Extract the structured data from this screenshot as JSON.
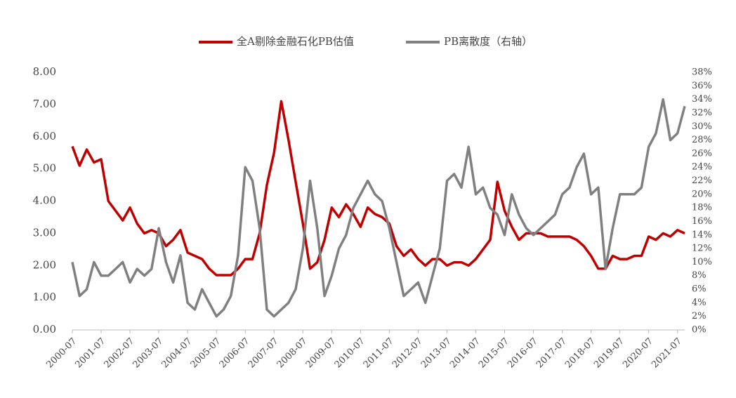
{
  "chart_data": {
    "type": "line",
    "x": [
      "2000-07",
      "2000-10",
      "2001-01",
      "2001-04",
      "2001-07",
      "2001-10",
      "2002-01",
      "2002-04",
      "2002-07",
      "2002-10",
      "2003-01",
      "2003-04",
      "2003-07",
      "2003-10",
      "2004-01",
      "2004-04",
      "2004-07",
      "2004-10",
      "2005-01",
      "2005-04",
      "2005-07",
      "2005-10",
      "2006-01",
      "2006-04",
      "2006-07",
      "2006-10",
      "2007-01",
      "2007-04",
      "2007-07",
      "2007-10",
      "2008-01",
      "2008-04",
      "2008-07",
      "2008-10",
      "2009-01",
      "2009-04",
      "2009-07",
      "2009-10",
      "2010-01",
      "2010-04",
      "2010-07",
      "2010-10",
      "2011-01",
      "2011-04",
      "2011-07",
      "2011-10",
      "2012-01",
      "2012-04",
      "2012-07",
      "2012-10",
      "2013-01",
      "2013-04",
      "2013-07",
      "2013-10",
      "2014-01",
      "2014-04",
      "2014-07",
      "2014-10",
      "2015-01",
      "2015-04",
      "2015-07",
      "2015-10",
      "2016-01",
      "2016-04",
      "2016-07",
      "2016-10",
      "2017-01",
      "2017-04",
      "2017-07",
      "2017-10",
      "2018-01",
      "2018-04",
      "2018-07",
      "2018-10",
      "2019-01",
      "2019-04",
      "2019-07",
      "2019-10",
      "2020-01",
      "2020-04",
      "2020-07",
      "2020-10",
      "2021-01",
      "2021-04",
      "2021-07",
      "2021-10"
    ],
    "series": [
      {
        "name": "全A剔除金融石化PB估值",
        "color": "#c00000",
        "values": [
          5.7,
          5.1,
          5.6,
          5.2,
          5.3,
          4.0,
          3.7,
          3.4,
          3.8,
          3.3,
          3.0,
          3.1,
          3.0,
          2.6,
          2.8,
          3.1,
          2.4,
          2.3,
          2.2,
          1.9,
          1.7,
          1.7,
          1.7,
          1.9,
          2.2,
          2.2,
          3.0,
          4.5,
          5.5,
          7.1,
          5.9,
          4.6,
          3.3,
          1.9,
          2.1,
          2.8,
          3.8,
          3.5,
          3.9,
          3.6,
          3.2,
          3.8,
          3.6,
          3.5,
          3.3,
          2.6,
          2.3,
          2.5,
          2.2,
          2.0,
          2.2,
          2.2,
          2.0,
          2.1,
          2.1,
          2.0,
          2.2,
          2.5,
          2.8,
          4.6,
          3.7,
          3.2,
          2.8,
          3.0,
          3.0,
          3.0,
          2.9,
          2.9,
          2.9,
          2.9,
          2.8,
          2.6,
          2.3,
          1.9,
          1.9,
          2.3,
          2.2,
          2.2,
          2.3,
          2.3,
          2.9,
          2.8,
          3.0,
          2.9,
          3.1,
          3.0
        ]
      },
      {
        "name": "PB离散度（右轴）",
        "color": "#808080",
        "axis": "y2",
        "values": [
          10,
          5,
          6,
          10,
          8,
          8,
          9,
          10,
          7,
          9,
          8,
          9,
          15,
          10,
          7,
          11,
          4,
          3,
          6,
          4,
          2,
          3,
          5,
          11,
          24,
          22,
          15,
          3,
          2,
          3,
          4,
          6,
          12,
          22,
          15,
          5,
          8,
          12,
          14,
          18,
          20,
          22,
          20,
          19,
          15,
          10,
          5,
          6,
          7,
          4,
          8,
          12,
          22,
          23,
          21,
          27,
          20,
          21,
          18,
          17,
          14,
          20,
          17,
          15,
          14,
          15,
          16,
          17,
          20,
          21,
          24,
          26,
          20,
          21,
          9,
          15,
          20,
          20,
          20,
          21,
          27,
          29,
          34,
          28,
          29,
          33
        ]
      }
    ],
    "xlim": [
      "2000-07",
      "2021-10"
    ],
    "xticks": [
      "2000-07",
      "2001-07",
      "2002-07",
      "2003-07",
      "2004-07",
      "2005-07",
      "2006-07",
      "2007-07",
      "2008-07",
      "2009-07",
      "2010-07",
      "2011-07",
      "2012-07",
      "2013-07",
      "2014-07",
      "2015-07",
      "2016-07",
      "2017-07",
      "2018-07",
      "2019-07",
      "2020-07",
      "2021-07"
    ],
    "ylim": [
      0,
      8
    ],
    "yticks": [
      {
        "value": 0,
        "label": "0.00"
      },
      {
        "value": 1,
        "label": "1.00"
      },
      {
        "value": 2,
        "label": "2.00"
      },
      {
        "value": 3,
        "label": "3.00"
      },
      {
        "value": 4,
        "label": "4.00"
      },
      {
        "value": 5,
        "label": "5.00"
      },
      {
        "value": 6,
        "label": "6.00"
      },
      {
        "value": 7,
        "label": "7.00"
      },
      {
        "value": 8,
        "label": "8.00"
      }
    ],
    "y2lim": [
      0,
      38
    ],
    "y2ticks": [
      {
        "value": 0,
        "label": "0%"
      },
      {
        "value": 2,
        "label": "2%"
      },
      {
        "value": 4,
        "label": "4%"
      },
      {
        "value": 6,
        "label": "6%"
      },
      {
        "value": 8,
        "label": "8%"
      },
      {
        "value": 10,
        "label": "10%"
      },
      {
        "value": 12,
        "label": "12%"
      },
      {
        "value": 14,
        "label": "14%"
      },
      {
        "value": 16,
        "label": "16%"
      },
      {
        "value": 18,
        "label": "18%"
      },
      {
        "value": 20,
        "label": "20%"
      },
      {
        "value": 22,
        "label": "22%"
      },
      {
        "value": 24,
        "label": "24%"
      },
      {
        "value": 26,
        "label": "26%"
      },
      {
        "value": 28,
        "label": "28%"
      },
      {
        "value": 30,
        "label": "30%"
      },
      {
        "value": 32,
        "label": "32%"
      },
      {
        "value": 34,
        "label": "34%"
      },
      {
        "value": 36,
        "label": "36%"
      },
      {
        "value": 38,
        "label": "38%"
      }
    ],
    "legend": "top"
  }
}
